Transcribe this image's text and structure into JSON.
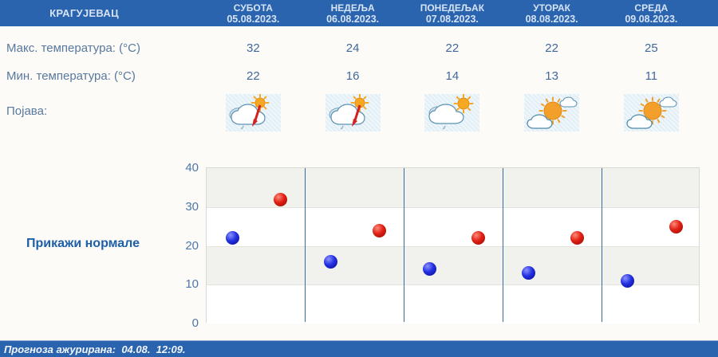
{
  "title_bar": {
    "city": "КРАГУЈЕВАЦ"
  },
  "labels": {
    "max": "Макс. температура: (°С)",
    "min": "Мин. температура: (°С)",
    "phenomenon": "Појава:"
  },
  "days": [
    {
      "name": "СУБОТА",
      "date": "05.08.2023.",
      "max": 32,
      "min": 22,
      "icon": "sun-cloud-thunder-rain"
    },
    {
      "name": "НЕДЕЉА",
      "date": "06.08.2023.",
      "max": 24,
      "min": 16,
      "icon": "sun-cloud-thunder-rain"
    },
    {
      "name": "ПОНЕДЕЉАК",
      "date": "07.08.2023.",
      "max": 22,
      "min": 14,
      "icon": "cloud-sun-light-rain"
    },
    {
      "name": "УТОРАК",
      "date": "08.08.2023.",
      "max": 22,
      "min": 13,
      "icon": "sun-clouds"
    },
    {
      "name": "СРЕДА",
      "date": "09.08.2023.",
      "max": 25,
      "min": 11,
      "icon": "sun-clouds"
    }
  ],
  "normals_button": "Прикажи нормале",
  "footer_text": "Прогноза ажурирана:  04.08.  12:09.",
  "chart_data": {
    "type": "scatter",
    "categories": [
      "05.08.2023.",
      "06.08.2023.",
      "07.08.2023.",
      "08.08.2023.",
      "09.08.2023."
    ],
    "series": [
      {
        "name": "Макс. температура (°С)",
        "color_core": "#e02013",
        "color_light": "#ff8a7a",
        "color_dark": "#8f0a05",
        "values": [
          32,
          24,
          22,
          22,
          25
        ]
      },
      {
        "name": "Мин. температура (°С)",
        "color_core": "#2430e0",
        "color_light": "#8a93ff",
        "color_dark": "#05098f",
        "values": [
          22,
          16,
          14,
          13,
          11
        ]
      }
    ],
    "ylim": [
      0,
      40
    ],
    "yticks": [
      0,
      10,
      20,
      30,
      40
    ],
    "grid": true,
    "legend": "none",
    "band_colors": [
      "#f1f1ed",
      "#ffffff",
      "#f1f1ed",
      "#ffffff"
    ]
  },
  "colors": {
    "header_bg": "#2a63ae",
    "header_text": "#d5e3f4",
    "label_text": "#58799f",
    "value_text": "#40689e",
    "link": "#1d5fa8",
    "day_divider": "#3a6b9e"
  }
}
